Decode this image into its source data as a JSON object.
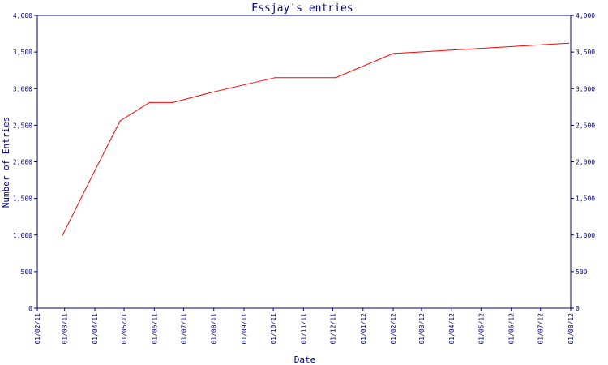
{
  "chart_data": {
    "type": "line",
    "title": "Essjay's entries",
    "xlabel": "Date",
    "ylabel": "Number of Entries",
    "ylim": [
      0,
      4000
    ],
    "y_ticks": [
      0,
      500,
      1000,
      1500,
      2000,
      2500,
      3000,
      3500,
      4000
    ],
    "y_tick_labels": [
      "0",
      "500",
      "1,000",
      "1,500",
      "2,000",
      "2,500",
      "3,000",
      "3,500",
      "4,000"
    ],
    "x_ticks": [
      "01/02/11",
      "01/03/11",
      "01/04/11",
      "01/05/11",
      "01/06/11",
      "01/07/11",
      "01/08/11",
      "01/09/11",
      "01/10/11",
      "01/11/11",
      "01/12/11",
      "01/01/12",
      "01/02/12",
      "01/03/12",
      "01/04/12",
      "01/05/12",
      "01/06/12",
      "01/07/12",
      "01/08/12"
    ],
    "x_range": [
      "2011-02-01",
      "2012-08-01"
    ],
    "grid": false,
    "line_color": "#ff0000",
    "axis_color": "#000080",
    "series": [
      {
        "x": [
          "2011-02-27",
          "2011-04-01",
          "2011-04-27",
          "2011-05-27",
          "2011-06-20",
          "2011-07-30",
          "2011-10-03",
          "2011-12-04",
          "2012-02-01",
          "2012-07-30"
        ],
        "values": [
          1000,
          1880,
          2560,
          2810,
          2810,
          2950,
          3150,
          3150,
          3480,
          3620
        ]
      }
    ]
  }
}
